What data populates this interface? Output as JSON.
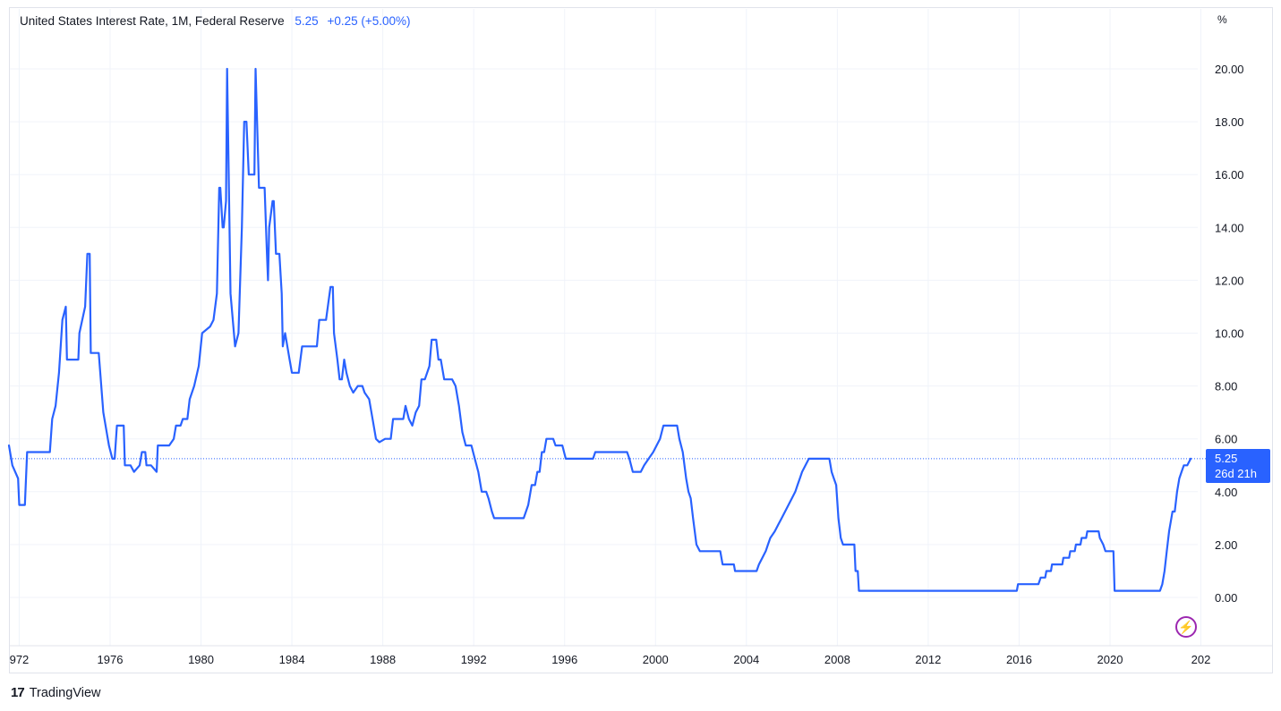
{
  "legend": {
    "title": "United States Interest Rate, 1M, Federal Reserve",
    "last_value": "5.25",
    "change": "+0.25 (+5.00%)"
  },
  "y_axis": {
    "unit_label": "%",
    "ticks": [
      "20.00",
      "18.00",
      "16.00",
      "14.00",
      "12.00",
      "10.00",
      "8.00",
      "6.00",
      "4.00",
      "2.00",
      "0.00"
    ]
  },
  "x_axis": {
    "ticks": [
      "972",
      "1976",
      "1980",
      "1984",
      "1988",
      "1992",
      "1996",
      "2000",
      "2004",
      "2008",
      "2012",
      "2016",
      "2020",
      "202"
    ]
  },
  "price_badge": {
    "value": "5.25",
    "countdown": "26d 21h"
  },
  "brand": {
    "logo_text": "17",
    "name": "TradingView"
  },
  "colors": {
    "line": "#2962ff",
    "grid": "#f0f3fa",
    "badge": "#2962ff",
    "bolt": "#9c27b0"
  },
  "chart_data": {
    "type": "line",
    "title": "United States Interest Rate, 1M, Federal Reserve",
    "ylabel": "%",
    "ylim": [
      -1.0,
      21.0
    ],
    "xlim": [
      1971.5,
      2024.2
    ],
    "grid": true,
    "series": [
      {
        "name": "United States Interest Rate",
        "points": [
          [
            1971.55,
            5.75
          ],
          [
            1971.7,
            5.0
          ],
          [
            1971.95,
            4.5
          ],
          [
            1972.0,
            3.5
          ],
          [
            1972.25,
            3.5
          ],
          [
            1972.35,
            5.5
          ],
          [
            1973.0,
            5.5
          ],
          [
            1973.35,
            5.5
          ],
          [
            1973.45,
            6.75
          ],
          [
            1973.6,
            7.25
          ],
          [
            1973.75,
            8.5
          ],
          [
            1973.9,
            10.5
          ],
          [
            1974.05,
            11.0
          ],
          [
            1974.1,
            9.0
          ],
          [
            1974.6,
            9.0
          ],
          [
            1974.65,
            10.0
          ],
          [
            1974.9,
            11.0
          ],
          [
            1975.0,
            13.0
          ],
          [
            1975.1,
            13.0
          ],
          [
            1975.15,
            9.25
          ],
          [
            1975.5,
            9.25
          ],
          [
            1975.7,
            7.0
          ],
          [
            1975.95,
            5.75
          ],
          [
            1976.1,
            5.25
          ],
          [
            1976.2,
            5.25
          ],
          [
            1976.3,
            6.5
          ],
          [
            1976.6,
            6.5
          ],
          [
            1976.65,
            5.0
          ],
          [
            1976.9,
            5.0
          ],
          [
            1977.05,
            4.75
          ],
          [
            1977.3,
            5.0
          ],
          [
            1977.4,
            5.5
          ],
          [
            1977.55,
            5.5
          ],
          [
            1977.6,
            5.0
          ],
          [
            1977.8,
            5.0
          ],
          [
            1978.05,
            4.75
          ],
          [
            1978.1,
            5.75
          ],
          [
            1978.6,
            5.75
          ],
          [
            1978.8,
            6.0
          ],
          [
            1978.9,
            6.5
          ],
          [
            1979.1,
            6.5
          ],
          [
            1979.2,
            6.75
          ],
          [
            1979.4,
            6.75
          ],
          [
            1979.5,
            7.5
          ],
          [
            1979.7,
            8.0
          ],
          [
            1979.9,
            8.75
          ],
          [
            1980.05,
            10.0
          ],
          [
            1980.4,
            10.25
          ],
          [
            1980.55,
            10.5
          ],
          [
            1980.7,
            11.5
          ],
          [
            1980.8,
            15.5
          ],
          [
            1980.85,
            15.5
          ],
          [
            1980.95,
            14.0
          ],
          [
            1981.0,
            14.0
          ],
          [
            1981.1,
            15.0
          ],
          [
            1981.15,
            20.0
          ],
          [
            1981.3,
            11.5
          ],
          [
            1981.5,
            9.5
          ],
          [
            1981.65,
            10.0
          ],
          [
            1981.8,
            14.0
          ],
          [
            1981.9,
            18.0
          ],
          [
            1982.0,
            18.0
          ],
          [
            1982.1,
            16.0
          ],
          [
            1982.35,
            16.0
          ],
          [
            1982.4,
            20.0
          ],
          [
            1982.55,
            15.5
          ],
          [
            1982.8,
            15.5
          ],
          [
            1982.9,
            13.0
          ],
          [
            1982.95,
            12.0
          ],
          [
            1983.0,
            14.0
          ],
          [
            1983.15,
            15.0
          ],
          [
            1983.2,
            15.0
          ],
          [
            1983.3,
            13.0
          ],
          [
            1983.45,
            13.0
          ],
          [
            1983.55,
            11.5
          ],
          [
            1983.6,
            9.5
          ],
          [
            1983.7,
            10.0
          ],
          [
            1983.9,
            9.0
          ],
          [
            1984.0,
            8.5
          ],
          [
            1984.3,
            8.5
          ],
          [
            1984.45,
            9.5
          ],
          [
            1984.7,
            9.5
          ],
          [
            1984.8,
            9.5
          ],
          [
            1985.1,
            9.5
          ],
          [
            1985.2,
            10.5
          ],
          [
            1985.5,
            10.5
          ],
          [
            1985.7,
            11.75
          ],
          [
            1985.8,
            11.75
          ],
          [
            1985.85,
            10.0
          ],
          [
            1986.0,
            9.0
          ],
          [
            1986.1,
            8.25
          ],
          [
            1986.2,
            8.25
          ],
          [
            1986.3,
            9.0
          ],
          [
            1986.4,
            8.5
          ],
          [
            1986.55,
            8.0
          ],
          [
            1986.7,
            7.75
          ],
          [
            1986.9,
            8.0
          ],
          [
            1987.1,
            8.0
          ],
          [
            1987.2,
            7.75
          ],
          [
            1987.4,
            7.5
          ],
          [
            1987.55,
            6.75
          ],
          [
            1987.7,
            6.0
          ],
          [
            1987.85,
            5.875
          ],
          [
            1988.1,
            6.0
          ],
          [
            1988.35,
            6.0
          ],
          [
            1988.45,
            6.75
          ],
          [
            1988.9,
            6.75
          ],
          [
            1989.0,
            7.25
          ],
          [
            1989.15,
            6.75
          ],
          [
            1989.3,
            6.5
          ],
          [
            1989.45,
            7.0
          ],
          [
            1989.6,
            7.25
          ],
          [
            1989.7,
            8.25
          ],
          [
            1989.85,
            8.25
          ],
          [
            1990.05,
            8.75
          ],
          [
            1990.15,
            9.75
          ],
          [
            1990.35,
            9.75
          ],
          [
            1990.45,
            9.0
          ],
          [
            1990.55,
            9.0
          ],
          [
            1990.7,
            8.25
          ],
          [
            1991.05,
            8.25
          ],
          [
            1991.2,
            8.0
          ],
          [
            1991.35,
            7.25
          ],
          [
            1991.5,
            6.25
          ],
          [
            1991.65,
            5.75
          ],
          [
            1991.9,
            5.75
          ],
          [
            1992.05,
            5.25
          ],
          [
            1992.2,
            4.75
          ],
          [
            1992.35,
            4.0
          ],
          [
            1992.55,
            4.0
          ],
          [
            1992.65,
            3.75
          ],
          [
            1992.8,
            3.25
          ],
          [
            1992.9,
            3.0
          ],
          [
            1993.3,
            3.0
          ],
          [
            1994.2,
            3.0
          ],
          [
            1994.4,
            3.5
          ],
          [
            1994.55,
            4.25
          ],
          [
            1994.7,
            4.25
          ],
          [
            1994.8,
            4.75
          ],
          [
            1994.9,
            4.75
          ],
          [
            1995.0,
            5.5
          ],
          [
            1995.1,
            5.5
          ],
          [
            1995.2,
            6.0
          ],
          [
            1995.5,
            6.0
          ],
          [
            1995.6,
            5.75
          ],
          [
            1995.9,
            5.75
          ],
          [
            1996.05,
            5.25
          ],
          [
            1996.3,
            5.25
          ],
          [
            1997.25,
            5.25
          ],
          [
            1997.35,
            5.5
          ],
          [
            1998.75,
            5.5
          ],
          [
            1998.85,
            5.25
          ],
          [
            1999.0,
            4.75
          ],
          [
            1999.35,
            4.75
          ],
          [
            1999.5,
            5.0
          ],
          [
            1999.7,
            5.25
          ],
          [
            1999.9,
            5.5
          ],
          [
            2000.05,
            5.75
          ],
          [
            2000.2,
            6.0
          ],
          [
            2000.35,
            6.5
          ],
          [
            2000.55,
            6.5
          ],
          [
            2000.95,
            6.5
          ],
          [
            2001.05,
            6.0
          ],
          [
            2001.2,
            5.5
          ],
          [
            2001.35,
            4.5
          ],
          [
            2001.45,
            4.0
          ],
          [
            2001.55,
            3.75
          ],
          [
            2001.65,
            3.0
          ],
          [
            2001.8,
            2.0
          ],
          [
            2001.95,
            1.75
          ],
          [
            2002.85,
            1.75
          ],
          [
            2002.95,
            1.25
          ],
          [
            2003.45,
            1.25
          ],
          [
            2003.5,
            1.0
          ],
          [
            2004.45,
            1.0
          ],
          [
            2004.55,
            1.25
          ],
          [
            2004.7,
            1.5
          ],
          [
            2004.85,
            1.75
          ],
          [
            2004.95,
            2.0
          ],
          [
            2005.05,
            2.25
          ],
          [
            2005.25,
            2.5
          ],
          [
            2005.4,
            2.75
          ],
          [
            2005.55,
            3.0
          ],
          [
            2005.7,
            3.25
          ],
          [
            2005.85,
            3.5
          ],
          [
            2006.0,
            3.75
          ],
          [
            2006.15,
            4.0
          ],
          [
            2006.25,
            4.25
          ],
          [
            2006.35,
            4.5
          ],
          [
            2006.45,
            4.75
          ],
          [
            2006.6,
            5.0
          ],
          [
            2006.75,
            5.25
          ],
          [
            2007.65,
            5.25
          ],
          [
            2007.75,
            4.75
          ],
          [
            2007.85,
            4.5
          ],
          [
            2007.95,
            4.25
          ],
          [
            2008.05,
            3.0
          ],
          [
            2008.15,
            2.25
          ],
          [
            2008.25,
            2.0
          ],
          [
            2008.75,
            2.0
          ],
          [
            2008.8,
            1.0
          ],
          [
            2008.9,
            1.0
          ],
          [
            2008.95,
            0.25
          ],
          [
            2015.9,
            0.25
          ],
          [
            2015.95,
            0.5
          ],
          [
            2016.85,
            0.5
          ],
          [
            2016.95,
            0.75
          ],
          [
            2017.15,
            0.75
          ],
          [
            2017.2,
            1.0
          ],
          [
            2017.4,
            1.0
          ],
          [
            2017.45,
            1.25
          ],
          [
            2017.9,
            1.25
          ],
          [
            2017.95,
            1.5
          ],
          [
            2018.2,
            1.5
          ],
          [
            2018.25,
            1.75
          ],
          [
            2018.45,
            1.75
          ],
          [
            2018.5,
            2.0
          ],
          [
            2018.7,
            2.0
          ],
          [
            2018.75,
            2.25
          ],
          [
            2018.95,
            2.25
          ],
          [
            2019.0,
            2.5
          ],
          [
            2019.5,
            2.5
          ],
          [
            2019.55,
            2.25
          ],
          [
            2019.7,
            2.0
          ],
          [
            2019.8,
            1.75
          ],
          [
            2020.15,
            1.75
          ],
          [
            2020.2,
            0.25
          ],
          [
            2022.2,
            0.25
          ],
          [
            2022.3,
            0.5
          ],
          [
            2022.4,
            1.0
          ],
          [
            2022.5,
            1.75
          ],
          [
            2022.6,
            2.5
          ],
          [
            2022.75,
            3.25
          ],
          [
            2022.85,
            3.25
          ],
          [
            2022.95,
            4.0
          ],
          [
            2023.05,
            4.5
          ],
          [
            2023.15,
            4.75
          ],
          [
            2023.25,
            5.0
          ],
          [
            2023.4,
            5.0
          ],
          [
            2023.55,
            5.25
          ]
        ]
      }
    ]
  }
}
